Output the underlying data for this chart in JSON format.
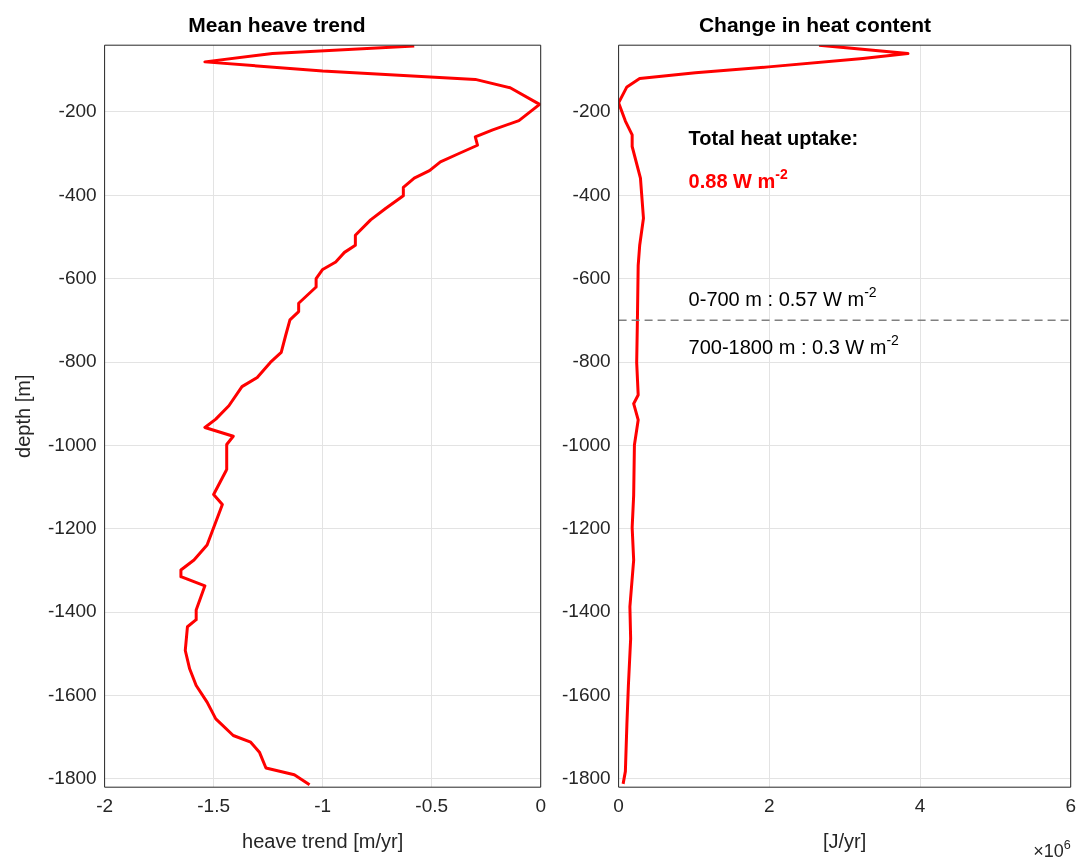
{
  "chart_data": [
    {
      "type": "line",
      "title": "Mean heave trend",
      "xlabel": "heave trend [m/yr]",
      "ylabel": "depth [m]",
      "xlim": [
        -2,
        0
      ],
      "xticks": [
        -2,
        -1.5,
        -1,
        -0.5,
        0
      ],
      "ylim": [
        -1820,
        -40
      ],
      "yticks": [
        -1800,
        -1600,
        -1400,
        -1200,
        -1000,
        -800,
        -600,
        -400,
        -200
      ],
      "grid": true,
      "legend": false,
      "marker": "none",
      "line_style": "solid",
      "series": [
        {
          "color": "#ff0000",
          "x": [
            -0.58,
            -1.23,
            -1.54,
            -1.0,
            -0.3,
            -0.14,
            -0.005,
            -0.1,
            -0.22,
            -0.3,
            -0.29,
            -0.38,
            -0.46,
            -0.51,
            -0.58,
            -0.63,
            -0.63,
            -0.71,
            -0.78,
            -0.85,
            -0.85,
            -0.9,
            -0.94,
            -1.0,
            -1.03,
            -1.03,
            -1.11,
            -1.11,
            -1.15,
            -1.17,
            -1.19,
            -1.24,
            -1.3,
            -1.37,
            -1.43,
            -1.49,
            -1.54,
            -1.41,
            -1.44,
            -1.44,
            -1.5,
            -1.46,
            -1.53,
            -1.59,
            -1.65,
            -1.65,
            -1.54,
            -1.58,
            -1.58,
            -1.62,
            -1.63,
            -1.61,
            -1.58,
            -1.53,
            -1.49,
            -1.41,
            -1.33,
            -1.29,
            -1.26,
            -1.13,
            -1.06
          ],
          "values": [
            -42,
            -60,
            -80,
            -102,
            -122,
            -142,
            -182,
            -221,
            -243,
            -260,
            -280,
            -301,
            -320,
            -341,
            -359,
            -381,
            -401,
            -431,
            -459,
            -496,
            -520,
            -537,
            -560,
            -578,
            -600,
            -620,
            -659,
            -679,
            -699,
            -737,
            -777,
            -801,
            -837,
            -859,
            -905,
            -937,
            -957,
            -978,
            -998,
            -1058,
            -1118,
            -1142,
            -1239,
            -1275,
            -1299,
            -1315,
            -1337,
            -1395,
            -1418,
            -1435,
            -1492,
            -1536,
            -1576,
            -1616,
            -1656,
            -1696,
            -1712,
            -1736,
            -1774,
            -1790,
            -1814
          ]
        }
      ]
    },
    {
      "type": "line",
      "title": "Change in heat content",
      "xlabel": "[J/yr]",
      "xlim": [
        0,
        6
      ],
      "xticks": [
        0,
        2,
        4,
        6
      ],
      "ylim": [
        -1820,
        -40
      ],
      "yticks": [
        -1800,
        -1600,
        -1400,
        -1200,
        -1000,
        -800,
        -600,
        -400,
        -200
      ],
      "grid": true,
      "legend": false,
      "marker": "none",
      "line_style": "solid",
      "annotations": [
        "Total heat uptake:",
        "0.88 W m$^{-2}$",
        "0-700 m : 0.57 W m$^{-2}$",
        "700-1800 m : 0.3 W m$^{-2}$",
        "×10$^{6}$"
      ],
      "ref_lines": [
        {
          "axis": "y",
          "value": -700,
          "color": "#808080",
          "line_style": "dashed"
        }
      ],
      "series": [
        {
          "color": "#ff0000",
          "x": [
            2.66,
            3.84,
            3.24,
            1.99,
            1.02,
            0.28,
            0.11,
            0.0,
            0.09,
            0.18,
            0.18,
            0.29,
            0.33,
            0.28,
            0.26,
            0.25,
            0.24,
            0.26,
            0.2,
            0.26,
            0.21,
            0.2,
            0.18,
            0.2,
            0.15,
            0.16,
            0.13,
            0.11,
            0.09,
            0.06
          ],
          "values": [
            -40,
            -60,
            -72,
            -92,
            -106,
            -120,
            -140,
            -178,
            -222,
            -255,
            -283,
            -359,
            -455,
            -520,
            -568,
            -696,
            -801,
            -879,
            -900,
            -939,
            -999,
            -1120,
            -1197,
            -1275,
            -1387,
            -1464,
            -1576,
            -1670,
            -1782,
            -1812
          ]
        }
      ]
    }
  ]
}
